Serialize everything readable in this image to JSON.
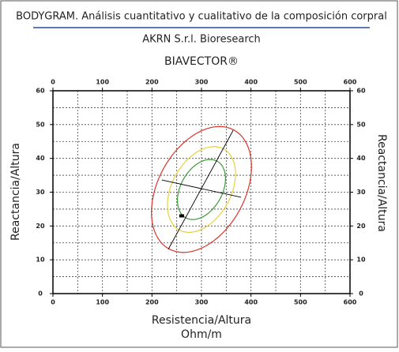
{
  "chart_data": {
    "type": "scatter",
    "header": "BODYGRAM. Análisis cuantitativo y cualitativo de la composición corpral",
    "subheader": "AKRN S.r.l. Bioresearch",
    "title": "BIAVECTOR®",
    "xlabel": [
      "Resistencia/Altura",
      "Ohm/m"
    ],
    "ylabel": "Reactancia/Altura",
    "xlim": [
      0,
      600
    ],
    "ylim": [
      0,
      60
    ],
    "xticks": [
      0,
      100,
      200,
      300,
      400,
      500,
      600
    ],
    "yticks": [
      0,
      10,
      20,
      30,
      40,
      50,
      60
    ],
    "xgrid": [
      50,
      100,
      150,
      200,
      250,
      300,
      350,
      400,
      450,
      500,
      550
    ],
    "ygrid": [
      5,
      10,
      15,
      20,
      25,
      30,
      35,
      40,
      45,
      50,
      55
    ],
    "grid": true,
    "ellipses": [
      {
        "color": "#d9352b",
        "center": [
          300,
          30.8
        ],
        "major": [
          65.4,
          17.6
        ],
        "minor": [
          77,
          -6.1
        ]
      },
      {
        "color": "#e8d23a",
        "center": [
          300,
          30.8
        ],
        "major": [
          44.5,
          12
        ],
        "minor": [
          52.4,
          -4.1
        ]
      },
      {
        "color": "#3a9a3a",
        "center": [
          300,
          30.8
        ],
        "major": [
          31.4,
          8.4
        ],
        "minor": [
          37,
          -2.9
        ]
      }
    ],
    "lines": [
      {
        "color": "#000000",
        "x": [
          233,
          364
        ],
        "y": [
          13.1,
          48.3
        ]
      },
      {
        "color": "#000000",
        "x": [
          220,
          380
        ],
        "y": [
          33.6,
          28.5
        ]
      }
    ],
    "series": [
      {
        "color": "#000000",
        "x": [
          260
        ],
        "values": [
          23
        ]
      }
    ]
  }
}
